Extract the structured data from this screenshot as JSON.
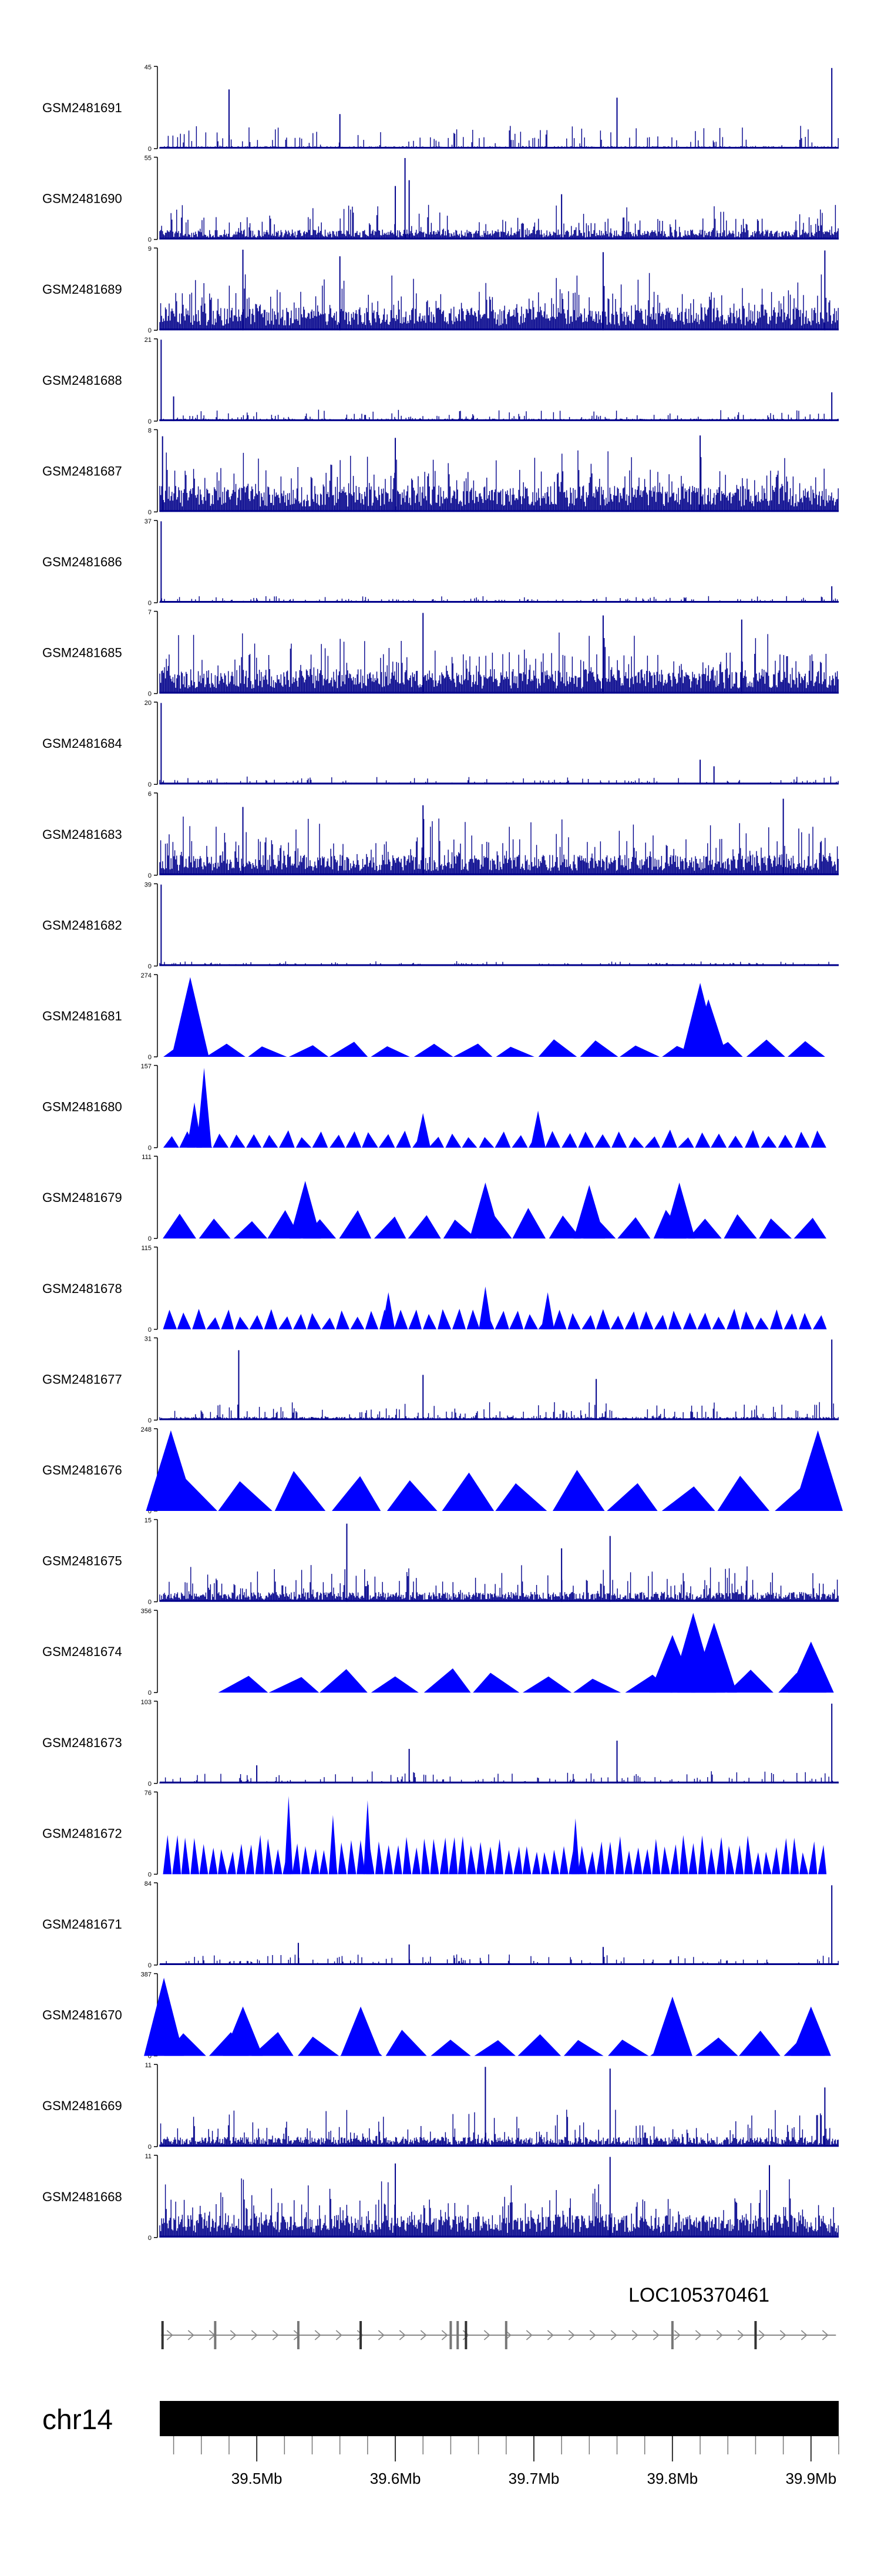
{
  "chart_data": {
    "type": "genome-browser-coverage",
    "title": "",
    "xlabel": "",
    "ylabel": "",
    "chromosome": "chr14",
    "x_unit": "Mb",
    "xlim": [
      39.43,
      39.92
    ],
    "x_ticks": [
      {
        "value": 39.5,
        "label": "39.5Mb"
      },
      {
        "value": 39.6,
        "label": "39.6Mb"
      },
      {
        "value": 39.7,
        "label": "39.7Mb"
      },
      {
        "value": 39.8,
        "label": "39.8Mb"
      },
      {
        "value": 39.9,
        "label": "39.9Mb"
      }
    ],
    "gene": {
      "name": "LOC105370461",
      "strand": "+",
      "start": 39.431,
      "end": 39.918,
      "exons": [
        39.432,
        39.47,
        39.53,
        39.575,
        39.64,
        39.645,
        39.651,
        39.68,
        39.8,
        39.86
      ]
    },
    "tracks": [
      {
        "name": "GSM2481691",
        "ymax": 45,
        "style": "dense",
        "base": 0.03,
        "max_frac": 0.28,
        "spikes": [
          [
            39.48,
            0.72
          ],
          [
            39.56,
            0.42
          ],
          [
            39.76,
            0.62
          ],
          [
            39.915,
            0.98
          ]
        ]
      },
      {
        "name": "GSM2481690",
        "ymax": 55,
        "style": "dense",
        "base": 0.12,
        "max_frac": 0.42,
        "spikes": [
          [
            39.607,
            0.99
          ],
          [
            39.6,
            0.65
          ],
          [
            39.61,
            0.72
          ],
          [
            39.72,
            0.55
          ]
        ]
      },
      {
        "name": "GSM2481689",
        "ymax": 9,
        "style": "dense",
        "base": 0.28,
        "max_frac": 0.7,
        "spikes": [
          [
            39.49,
            0.98
          ],
          [
            39.56,
            0.9
          ],
          [
            39.75,
            0.95
          ],
          [
            39.91,
            0.97
          ]
        ]
      },
      {
        "name": "GSM2481688",
        "ymax": 21,
        "style": "dense",
        "base": 0.03,
        "max_frac": 0.14,
        "spikes": [
          [
            39.431,
            0.99
          ],
          [
            39.915,
            0.35
          ],
          [
            39.44,
            0.3
          ]
        ]
      },
      {
        "name": "GSM2481687",
        "ymax": 8,
        "style": "dense",
        "base": 0.32,
        "max_frac": 0.75,
        "spikes": [
          [
            39.432,
            0.92
          ],
          [
            39.6,
            0.9
          ],
          [
            39.82,
            0.93
          ]
        ]
      },
      {
        "name": "GSM2481686",
        "ymax": 37,
        "style": "dense",
        "base": 0.02,
        "max_frac": 0.08,
        "spikes": [
          [
            39.431,
            0.99
          ],
          [
            39.915,
            0.2
          ]
        ]
      },
      {
        "name": "GSM2481685",
        "ymax": 7,
        "style": "dense",
        "base": 0.3,
        "max_frac": 0.75,
        "spikes": [
          [
            39.62,
            0.98
          ],
          [
            39.75,
            0.95
          ],
          [
            39.85,
            0.9
          ]
        ]
      },
      {
        "name": "GSM2481684",
        "ymax": 20,
        "style": "dense",
        "base": 0.02,
        "max_frac": 0.1,
        "spikes": [
          [
            39.431,
            0.99
          ],
          [
            39.82,
            0.3
          ],
          [
            39.83,
            0.22
          ]
        ]
      },
      {
        "name": "GSM2481683",
        "ymax": 6,
        "style": "dense",
        "base": 0.25,
        "max_frac": 0.72,
        "spikes": [
          [
            39.49,
            0.83
          ],
          [
            39.62,
            0.85
          ],
          [
            39.88,
            0.93
          ]
        ]
      },
      {
        "name": "GSM2481682",
        "ymax": 39,
        "style": "dense",
        "base": 0.02,
        "max_frac": 0.06,
        "spikes": [
          [
            39.431,
            0.99
          ]
        ]
      },
      {
        "name": "GSM2481681",
        "ymax": 274,
        "style": "peaks",
        "n": 16,
        "max_frac": 0.22,
        "spikes": [
          [
            39.452,
            0.97
          ],
          [
            39.82,
            0.9
          ],
          [
            39.826,
            0.7
          ]
        ]
      },
      {
        "name": "GSM2481680",
        "ymax": 157,
        "style": "peaks",
        "n": 40,
        "max_frac": 0.22,
        "spikes": [
          [
            39.462,
            0.97
          ],
          [
            39.455,
            0.55
          ],
          [
            39.703,
            0.45
          ],
          [
            39.62,
            0.42
          ]
        ]
      },
      {
        "name": "GSM2481679",
        "ymax": 111,
        "style": "peaks",
        "n": 19,
        "max_frac": 0.38,
        "spikes": [
          [
            39.535,
            0.7
          ],
          [
            39.665,
            0.68
          ],
          [
            39.74,
            0.65
          ],
          [
            39.805,
            0.68
          ]
        ]
      },
      {
        "name": "GSM2481678",
        "ymax": 115,
        "style": "peaks",
        "n": 46,
        "max_frac": 0.25,
        "spikes": [
          [
            39.665,
            0.52
          ],
          [
            39.595,
            0.45
          ],
          [
            39.71,
            0.45
          ]
        ]
      },
      {
        "name": "GSM2481677",
        "ymax": 31,
        "style": "dense",
        "base": 0.04,
        "max_frac": 0.22,
        "spikes": [
          [
            39.915,
            0.98
          ],
          [
            39.487,
            0.85
          ],
          [
            39.62,
            0.55
          ],
          [
            39.745,
            0.5
          ]
        ]
      },
      {
        "name": "GSM2481676",
        "ymax": 248,
        "style": "peaks",
        "n": 12,
        "max_frac": 0.5,
        "spikes": [
          [
            39.438,
            0.98
          ],
          [
            39.905,
            0.98
          ]
        ]
      },
      {
        "name": "GSM2481675",
        "ymax": 15,
        "style": "dense",
        "base": 0.12,
        "max_frac": 0.45,
        "spikes": [
          [
            39.565,
            0.95
          ],
          [
            39.755,
            0.8
          ],
          [
            39.72,
            0.65
          ]
        ]
      },
      {
        "name": "GSM2481674",
        "ymax": 356,
        "style": "peaks",
        "n": 12,
        "max_frac": 0.3,
        "start": 39.472,
        "spikes": [
          [
            39.8,
            0.7
          ],
          [
            39.815,
            0.97
          ],
          [
            39.83,
            0.85
          ],
          [
            39.9,
            0.62
          ]
        ]
      },
      {
        "name": "GSM2481673",
        "ymax": 103,
        "style": "dense",
        "base": 0.02,
        "max_frac": 0.15,
        "spikes": [
          [
            39.915,
            0.97
          ],
          [
            39.61,
            0.42
          ],
          [
            39.76,
            0.52
          ],
          [
            39.5,
            0.22
          ]
        ]
      },
      {
        "name": "GSM2481672",
        "ymax": 76,
        "style": "peaks",
        "n": 72,
        "max_frac": 0.48,
        "spikes": [
          [
            39.523,
            0.95
          ],
          [
            39.58,
            0.9
          ],
          [
            39.555,
            0.72
          ],
          [
            39.73,
            0.68
          ]
        ]
      },
      {
        "name": "GSM2481671",
        "ymax": 84,
        "style": "dense",
        "base": 0.02,
        "max_frac": 0.13,
        "spikes": [
          [
            39.915,
            0.97
          ],
          [
            39.53,
            0.27
          ],
          [
            39.75,
            0.22
          ],
          [
            39.61,
            0.25
          ]
        ]
      },
      {
        "name": "GSM2481670",
        "ymax": 387,
        "style": "peaks",
        "n": 15,
        "max_frac": 0.32,
        "spikes": [
          [
            39.8,
            0.72
          ],
          [
            39.433,
            0.95
          ],
          [
            39.49,
            0.6
          ],
          [
            39.575,
            0.6
          ],
          [
            39.9,
            0.6
          ]
        ]
      },
      {
        "name": "GSM2481669",
        "ymax": 11,
        "style": "dense",
        "base": 0.12,
        "max_frac": 0.45,
        "spikes": [
          [
            39.665,
            0.97
          ],
          [
            39.755,
            0.95
          ],
          [
            39.91,
            0.72
          ]
        ]
      },
      {
        "name": "GSM2481668",
        "ymax": 11,
        "style": "dense",
        "base": 0.28,
        "max_frac": 0.72,
        "spikes": [
          [
            39.755,
            0.98
          ],
          [
            39.6,
            0.9
          ],
          [
            39.87,
            0.88
          ]
        ]
      }
    ]
  }
}
